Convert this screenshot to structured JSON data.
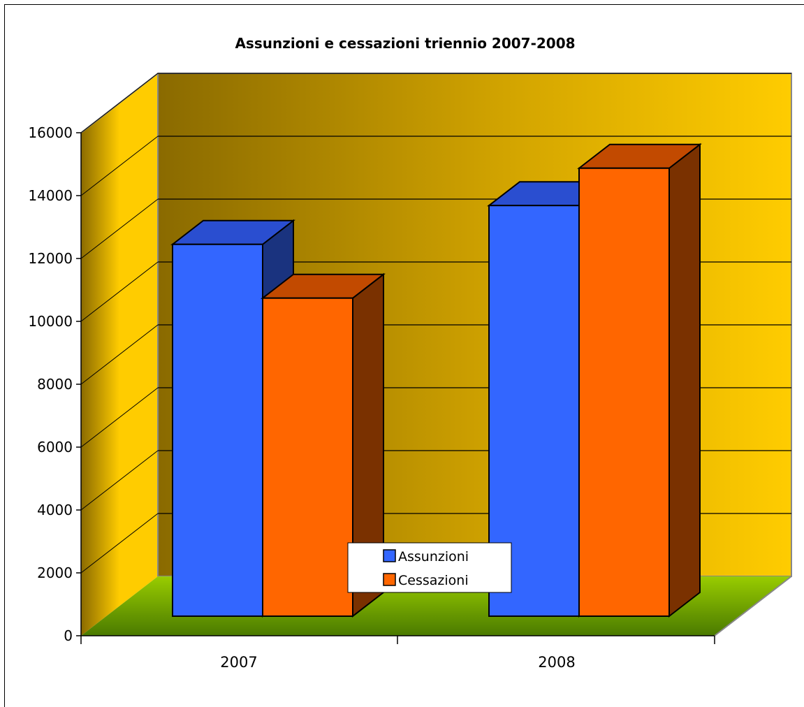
{
  "chart_data": {
    "type": "bar",
    "title": "Assunzioni e cessazioni triennio 2007-2008",
    "categories": [
      "2007",
      "2008"
    ],
    "series": [
      {
        "name": "Assunzioni",
        "values": [
          12450,
          13750
        ],
        "color": "#3366ff"
      },
      {
        "name": "Cessazioni",
        "values": [
          10650,
          15000
        ],
        "color": "#ff6600"
      }
    ],
    "ylim": [
      0,
      16000
    ],
    "yticks": [
      "0",
      "2000",
      "4000",
      "6000",
      "8000",
      "10000",
      "12000",
      "14000",
      "16000"
    ],
    "xlabel": "",
    "ylabel": "",
    "grid": true,
    "legend": "bottom-center",
    "three_d": true,
    "colors": {
      "back_wall_dark": "#8a6a00",
      "back_wall_light": "#ffcc00",
      "floor_dark": "#4a7a00",
      "floor_light": "#99cc00"
    }
  }
}
